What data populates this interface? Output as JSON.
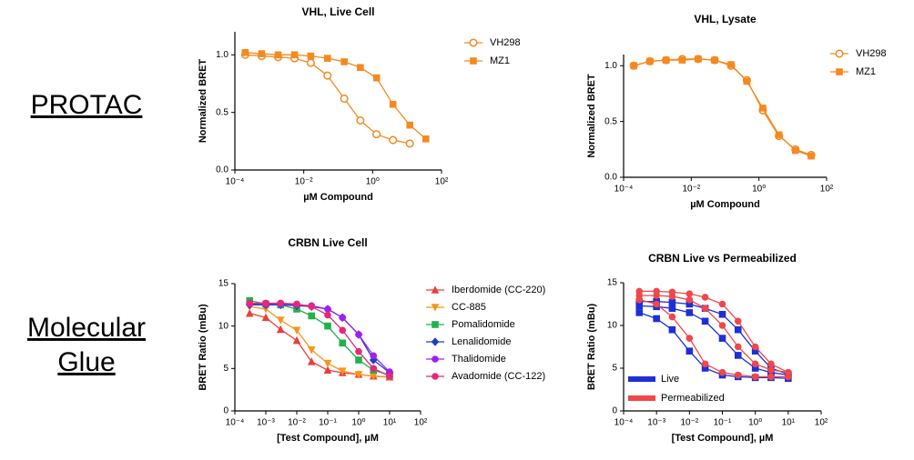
{
  "side_labels": [
    [
      "PROTAC"
    ],
    [
      "Molecular",
      "Glue"
    ]
  ],
  "chart_data": [
    {
      "type": "line",
      "title": "VHL, Live Cell",
      "xlabel": "µM Compound",
      "ylabel": "Normalized BRET",
      "xscale": "log",
      "xlim": [
        0.0001,
        100
      ],
      "xticks": [
        {
          "value": 0.0001,
          "label": "10⁻⁴"
        },
        {
          "value": 0.01,
          "label": "10⁻²"
        },
        {
          "value": 1,
          "label": "10⁰"
        },
        {
          "value": 100,
          "label": "10²"
        }
      ],
      "ylim": [
        0,
        1.2
      ],
      "yticks": [
        {
          "value": 0,
          "label": "0.0"
        },
        {
          "value": 0.5,
          "label": "0.5"
        },
        {
          "value": 1,
          "label": "1.0"
        }
      ],
      "legend": "right",
      "x": [
        0.0002,
        0.0006,
        0.0018,
        0.0054,
        0.016,
        0.049,
        0.15,
        0.44,
        1.3,
        3.9,
        12,
        35
      ],
      "series": [
        {
          "name": "VH298",
          "color": "#f5891f",
          "marker": "circle-open",
          "values": [
            1.0,
            0.99,
            0.98,
            0.97,
            0.93,
            0.82,
            0.62,
            0.43,
            0.31,
            0.26,
            0.23,
            null
          ]
        },
        {
          "name": "MZ1",
          "color": "#f5891f",
          "marker": "square",
          "values": [
            1.02,
            1.01,
            1.0,
            1.0,
            0.99,
            0.97,
            0.94,
            0.89,
            0.8,
            0.57,
            0.39,
            0.27
          ]
        }
      ]
    },
    {
      "type": "line",
      "title": "VHL, Lysate",
      "xlabel": "µM Compound",
      "ylabel": "Normalized BRET",
      "xscale": "log",
      "xlim": [
        0.0001,
        100
      ],
      "xticks": [
        {
          "value": 0.0001,
          "label": "10⁻⁴"
        },
        {
          "value": 0.01,
          "label": "10⁻²"
        },
        {
          "value": 1,
          "label": "10⁰"
        },
        {
          "value": 100,
          "label": "10²"
        }
      ],
      "ylim": [
        0,
        1.1
      ],
      "yticks": [
        {
          "value": 0,
          "label": "0.0"
        },
        {
          "value": 0.5,
          "label": "0.5"
        },
        {
          "value": 1,
          "label": "1.0"
        }
      ],
      "legend": "right",
      "x": [
        0.0002,
        0.0006,
        0.0018,
        0.0054,
        0.016,
        0.049,
        0.15,
        0.44,
        1.3,
        3.9,
        12,
        35
      ],
      "series": [
        {
          "name": "VH298",
          "color": "#f5891f",
          "marker": "circle-open",
          "values": [
            1.0,
            1.04,
            1.05,
            1.06,
            1.06,
            1.05,
            1.0,
            0.87,
            0.6,
            0.37,
            0.25,
            0.2
          ]
        },
        {
          "name": "MZ1",
          "color": "#f5891f",
          "marker": "square",
          "values": [
            1.0,
            1.04,
            1.05,
            1.05,
            1.06,
            1.05,
            1.01,
            0.86,
            0.62,
            0.38,
            0.24,
            0.19
          ]
        }
      ]
    },
    {
      "type": "line",
      "title": "CRBN Live Cell",
      "xlabel": "[Test Compound], µM",
      "ylabel": "BRET Ratio (mBu)",
      "xscale": "log",
      "xlim": [
        0.0001,
        100
      ],
      "xticks": [
        {
          "value": 0.0001,
          "label": "10⁻⁴"
        },
        {
          "value": 0.001,
          "label": "10⁻³"
        },
        {
          "value": 0.01,
          "label": "10⁻²"
        },
        {
          "value": 0.1,
          "label": "10⁻¹"
        },
        {
          "value": 1,
          "label": "10⁰"
        },
        {
          "value": 10,
          "label": "10¹"
        },
        {
          "value": 100,
          "label": "10²"
        }
      ],
      "ylim": [
        0,
        15
      ],
      "yticks": [
        0,
        5,
        10,
        15
      ],
      "legend": "right",
      "x": [
        0.0003,
        0.001,
        0.003,
        0.01,
        0.03,
        0.1,
        0.3,
        1,
        3,
        10
      ],
      "series": [
        {
          "name": "Iberdomide (CC-220)",
          "color": "#e8403a",
          "marker": "triangle-up",
          "values": [
            11.5,
            11,
            9.6,
            8.3,
            5.8,
            4.8,
            4.5,
            4.3,
            4.1,
            4.0
          ]
        },
        {
          "name": "CC-885",
          "color": "#f7941d",
          "marker": "triangle-down",
          "values": [
            12.3,
            12,
            10.7,
            9.5,
            7.2,
            5.6,
            4.7,
            4.3,
            4.1,
            4.0
          ]
        },
        {
          "name": "Pomalidomide",
          "color": "#22b14c",
          "marker": "square",
          "values": [
            13,
            12.6,
            12.5,
            12,
            11.2,
            10,
            8,
            6,
            4.8,
            4.2
          ]
        },
        {
          "name": "Lenalidomide",
          "color": "#1f3fbf",
          "marker": "diamond",
          "values": [
            12.5,
            12.5,
            12.5,
            12.4,
            12.3,
            12,
            11,
            9,
            6,
            4.5
          ]
        },
        {
          "name": "Thalidomide",
          "color": "#a020f0",
          "marker": "circle",
          "values": [
            12.6,
            12.6,
            12.6,
            12.5,
            12.4,
            12,
            11,
            9,
            6.5,
            4.6
          ]
        },
        {
          "name": "Avadomide (CC-122)",
          "color": "#e6287a",
          "marker": "circle",
          "values": [
            12.7,
            12.7,
            12.7,
            12.6,
            12.3,
            11.3,
            9.5,
            7,
            5,
            4.1
          ]
        }
      ]
    },
    {
      "type": "line",
      "title": "CRBN Live vs Permeabilized",
      "xlabel": "[Test Compound], µM",
      "ylabel": "BRET Ratio (mBu)",
      "xscale": "log",
      "xlim": [
        0.0001,
        100
      ],
      "xticks": [
        {
          "value": 0.0001,
          "label": "10⁻⁴"
        },
        {
          "value": 0.001,
          "label": "10⁻³"
        },
        {
          "value": 0.01,
          "label": "10⁻²"
        },
        {
          "value": 0.1,
          "label": "10⁻¹"
        },
        {
          "value": 1,
          "label": "10⁰"
        },
        {
          "value": 10,
          "label": "10¹"
        },
        {
          "value": 100,
          "label": "10²"
        }
      ],
      "ylim": [
        0,
        15
      ],
      "yticks": [
        0,
        5,
        10,
        15
      ],
      "legend": "lower left",
      "x": [
        0.0003,
        0.001,
        0.003,
        0.01,
        0.03,
        0.1,
        0.3,
        1,
        3,
        10
      ],
      "series": [
        {
          "name": "Live",
          "color": "#1c2fd8",
          "marker": "square",
          "curves": [
            [
              11.5,
              10.8,
              9.5,
              7,
              5,
              4.2,
              4,
              3.9,
              3.9,
              3.8
            ],
            [
              12.3,
              12.2,
              12,
              11.5,
              10.5,
              8.5,
              6.5,
              5,
              4.5,
              4.2
            ],
            [
              12.8,
              12.8,
              12.7,
              12.5,
              12,
              11.3,
              9.5,
              7,
              5,
              4.3
            ]
          ]
        },
        {
          "name": "Permeabilized",
          "color": "#f0474a",
          "marker": "circle",
          "curves": [
            [
              13,
              12.5,
              11,
              8.5,
              5.5,
              4.5,
              4.2,
              4,
              4,
              4
            ],
            [
              13.5,
              13.5,
              13.4,
              13,
              12,
              10,
              7.5,
              5.5,
              4.8,
              4.5
            ],
            [
              14,
              14,
              13.9,
              13.7,
              13.3,
              12.5,
              10.5,
              7.5,
              5.5,
              4.5
            ]
          ]
        }
      ]
    }
  ]
}
